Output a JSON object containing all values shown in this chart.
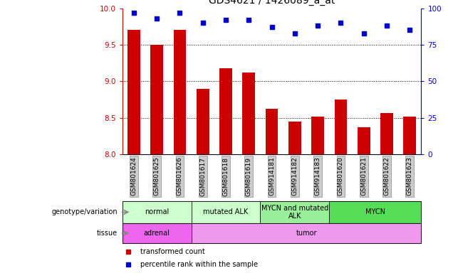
{
  "title": "GDS4621 / 1426089_a_at",
  "samples": [
    "GSM801624",
    "GSM801625",
    "GSM801626",
    "GSM801617",
    "GSM801618",
    "GSM801619",
    "GSM914181",
    "GSM914182",
    "GSM914183",
    "GSM801620",
    "GSM801621",
    "GSM801622",
    "GSM801623"
  ],
  "red_values": [
    9.7,
    9.5,
    9.7,
    8.9,
    9.18,
    9.12,
    8.63,
    8.45,
    8.52,
    8.75,
    8.37,
    8.57,
    8.52
  ],
  "blue_values": [
    97,
    93,
    97,
    90,
    92,
    92,
    87,
    83,
    88,
    90,
    83,
    88,
    85
  ],
  "ylim_left": [
    8,
    10
  ],
  "ylim_right": [
    0,
    100
  ],
  "yticks_left": [
    8,
    8.5,
    9,
    9.5,
    10
  ],
  "yticks_right": [
    0,
    25,
    50,
    75,
    100
  ],
  "grid_values": [
    8.5,
    9.0,
    9.5
  ],
  "bar_color": "#cc0000",
  "dot_color": "#0000cc",
  "bar_width": 0.55,
  "genotype_groups": [
    {
      "label": "normal",
      "start": 0,
      "end": 3,
      "color": "#ccffcc"
    },
    {
      "label": "mutated ALK",
      "start": 3,
      "end": 6,
      "color": "#ccffcc"
    },
    {
      "label": "MYCN and mutated\nALK",
      "start": 6,
      "end": 9,
      "color": "#99ee99"
    },
    {
      "label": "MYCN",
      "start": 9,
      "end": 13,
      "color": "#55dd55"
    }
  ],
  "tissue_groups": [
    {
      "label": "adrenal",
      "start": 0,
      "end": 3,
      "color": "#ee66ee"
    },
    {
      "label": "tumor",
      "start": 3,
      "end": 13,
      "color": "#ee99ee"
    }
  ],
  "bar_color_hex": "#cc0000",
  "dot_color_hex": "#0000cc",
  "tick_label_color": "#cc0000",
  "right_tick_color": "#0000cc",
  "label_fontsize": 7,
  "tick_fontsize": 7.5,
  "title_fontsize": 10,
  "sample_fontsize": 6.5,
  "legend_red_label": "transformed count",
  "legend_blue_label": "percentile rank within the sample",
  "genotype_row_label": "genotype/variation",
  "tissue_row_label": "tissue"
}
